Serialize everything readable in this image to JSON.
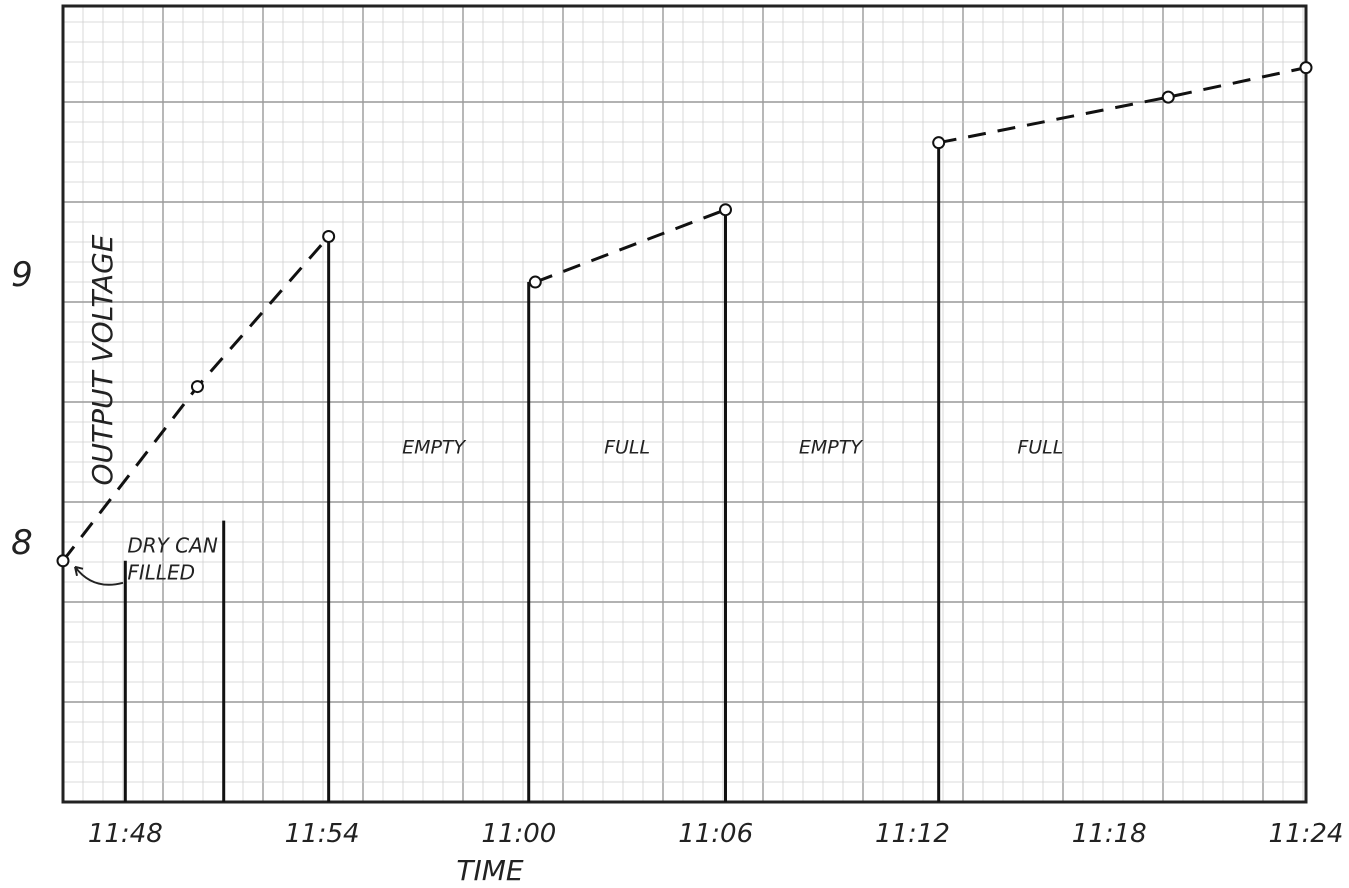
{
  "chart_data": {
    "type": "line",
    "title": "",
    "xlabel": "TIME",
    "ylabel": "OUTPUT VOLTAGE",
    "x_ticks": [
      "11:48",
      "11:54",
      "11:00",
      "11:06",
      "11:12",
      "11:18",
      "11:24"
    ],
    "x_tick_minutes": [
      48,
      54,
      60,
      66,
      72,
      78,
      84
    ],
    "xlim_minutes": [
      46.1,
      84
    ],
    "y_ticks": [
      "8",
      "9"
    ],
    "y_tick_values": [
      8,
      9
    ],
    "ylim": [
      7.03,
      10.0
    ],
    "grid": true,
    "series": [
      {
        "points": [
          [
            46.1,
            7.93
          ],
          [
            50.2,
            8.58
          ],
          [
            54.2,
            9.14
          ]
        ]
      },
      {
        "points": [
          [
            60.5,
            8.97
          ],
          [
            66.3,
            9.24
          ]
        ]
      },
      {
        "points": [
          [
            72.8,
            9.49
          ],
          [
            79.8,
            9.66
          ],
          [
            84.0,
            9.77
          ]
        ]
      }
    ],
    "markers": [
      [
        46.1,
        7.93
      ],
      [
        50.2,
        8.58
      ],
      [
        54.2,
        9.14
      ],
      [
        60.5,
        8.97
      ],
      [
        66.3,
        9.24
      ],
      [
        72.8,
        9.49
      ],
      [
        79.8,
        9.66
      ],
      [
        84.0,
        9.77
      ]
    ],
    "vertical_lines": [
      {
        "x": 48.0,
        "from": 7.03,
        "to": 7.93
      },
      {
        "x": 51.0,
        "from": 7.03,
        "to": 8.08
      },
      {
        "x": 54.2,
        "from": 7.03,
        "to": 9.14
      },
      {
        "x": 60.3,
        "from": 7.03,
        "to": 8.97
      },
      {
        "x": 66.3,
        "from": 7.03,
        "to": 9.24
      },
      {
        "x": 72.8,
        "from": 7.03,
        "to": 9.49
      }
    ],
    "annotations": [
      {
        "text": "EMPTY",
        "x": 57.4,
        "y": 8.33
      },
      {
        "text": "FULL",
        "x": 63.3,
        "y": 8.33
      },
      {
        "text": "EMPTY",
        "x": 69.5,
        "y": 8.33
      },
      {
        "text": "FULL",
        "x": 75.9,
        "y": 8.33
      },
      {
        "text": "DRY CAN",
        "x": 48.0,
        "y": 7.96
      },
      {
        "text": "FILLED",
        "x": 48.0,
        "y": 7.86
      }
    ]
  }
}
